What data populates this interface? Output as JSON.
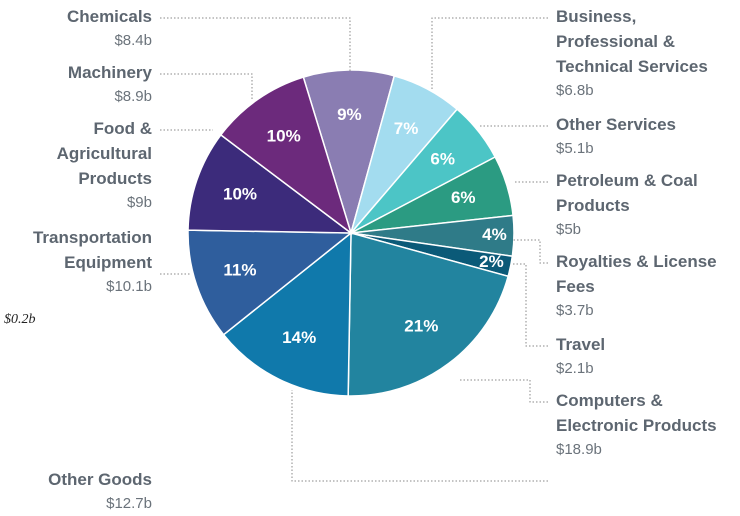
{
  "chart_data": {
    "type": "pie",
    "categories": [
      "Chemicals",
      "Business,\nProfessional &\nTechnical Services",
      "Other Services",
      "Petroleum & Coal\nProducts",
      "Royalties & License\nFees",
      "Travel",
      "Computers &\nElectronic Products",
      "Other Goods",
      "Transportation\nEquipment",
      "Food &\nAgricultural\nProducts",
      "Machinery"
    ],
    "values": [
      9,
      7,
      6,
      6,
      4,
      2,
      21,
      14,
      11,
      10,
      10
    ],
    "value_labels": [
      "9%",
      "7%",
      "6%",
      "6%",
      "4%",
      "2%",
      "21%",
      "14%",
      "11%",
      "10%",
      "10%"
    ],
    "amounts": [
      8.4,
      6.8,
      5.1,
      5,
      3.7,
      2.1,
      18.9,
      12.7,
      10.1,
      9,
      8.9
    ],
    "amount_labels": [
      "$8.4b",
      "$6.8b",
      "$5.1b",
      "$5b",
      "$3.7b",
      "$2.1b",
      "$18.9b",
      "$12.7b",
      "$10.1b",
      "$9b",
      "$8.9b"
    ],
    "colors": [
      "#8a7db2",
      "#a3dcef",
      "#4cc5c6",
      "#2b9b82",
      "#2f7b88",
      "#0b5a78",
      "#22849f",
      "#1079ab",
      "#2f5e9d",
      "#3c2b7b",
      "#6c2a7c"
    ],
    "annotation": "$0.2b"
  }
}
